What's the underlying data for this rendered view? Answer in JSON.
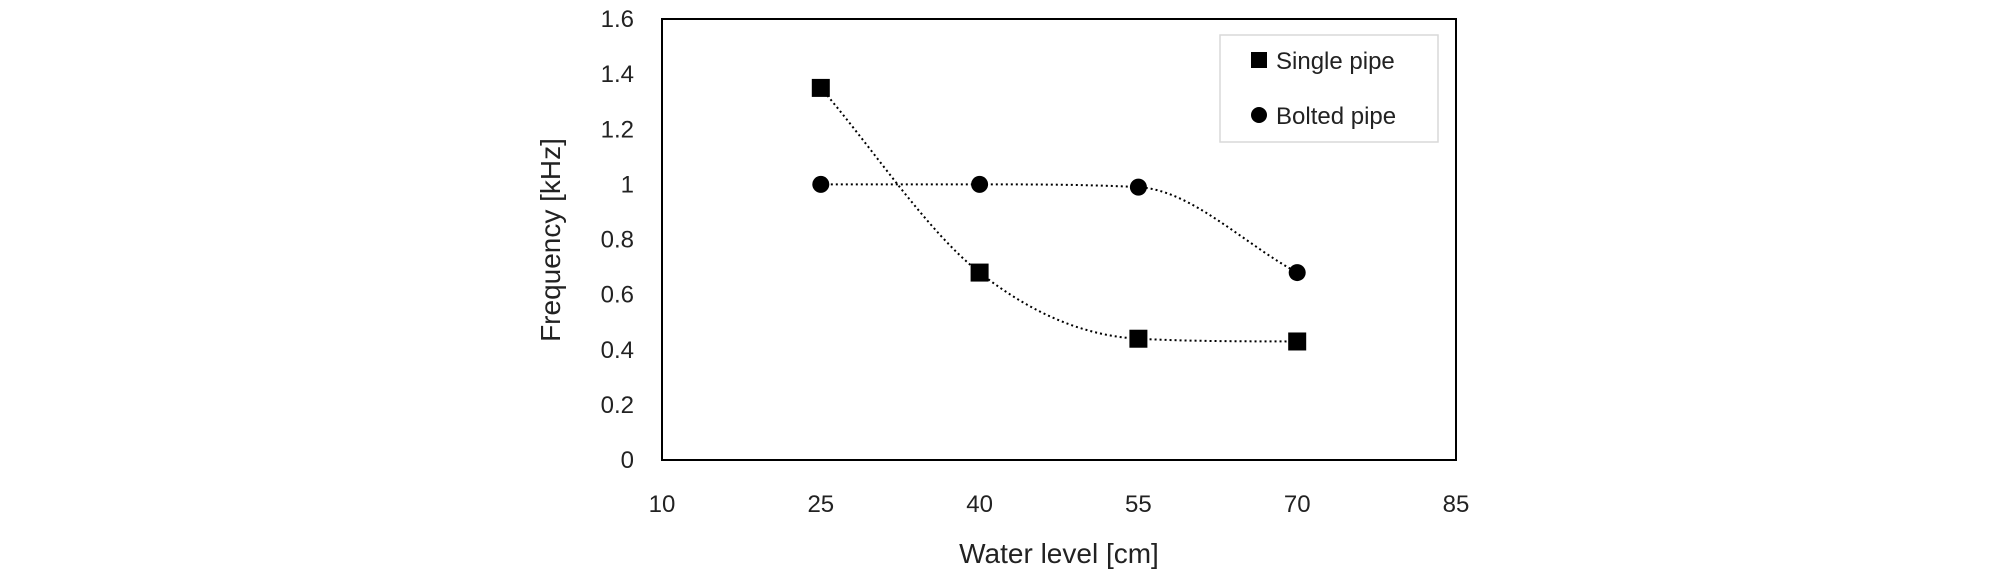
{
  "chart_data": {
    "type": "scatter",
    "title": "",
    "xlabel": "Water level [cm]",
    "ylabel": "Frequency [kHz]",
    "xlim": [
      10,
      85
    ],
    "ylim": [
      0,
      1.6
    ],
    "xticks": [
      "10",
      "25",
      "40",
      "55",
      "70",
      "85"
    ],
    "yticks": [
      "0",
      "0.2",
      "0.4",
      "0.6",
      "0.8",
      "1",
      "1.2",
      "1.4",
      "1.6"
    ],
    "grid": false,
    "legend_position": "top-right",
    "series": [
      {
        "name": "Single pipe",
        "marker": "square",
        "x": [
          25,
          40,
          55,
          70
        ],
        "y": [
          1.35,
          0.68,
          0.44,
          0.43
        ],
        "trendline": "dotted",
        "color": "#000000"
      },
      {
        "name": "Bolted pipe",
        "marker": "circle",
        "x": [
          25,
          40,
          55,
          70
        ],
        "y": [
          1.0,
          1.0,
          0.99,
          0.68
        ],
        "trendline": "dotted",
        "color": "#000000"
      }
    ]
  }
}
